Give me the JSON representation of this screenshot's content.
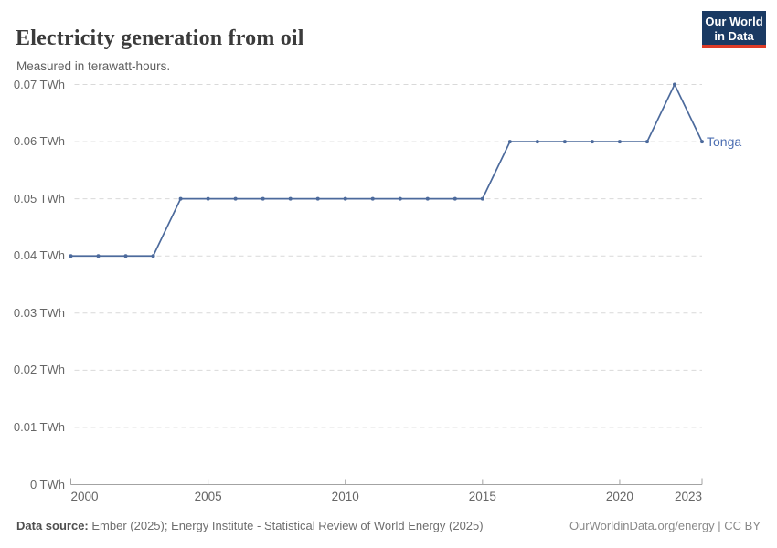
{
  "header": {
    "title": "Electricity generation from oil",
    "subtitle": "Measured in terawatt-hours.",
    "logo": {
      "line1": "Our World",
      "line2": "in Data",
      "bg_color": "#1a3a63",
      "bar_color": "#dd3b27",
      "text_color": "#ffffff"
    }
  },
  "chart_data": {
    "type": "line",
    "title": "Electricity generation from oil",
    "subtitle": "Measured in terawatt-hours.",
    "unit": "TWh",
    "x": [
      2000,
      2001,
      2002,
      2003,
      2004,
      2005,
      2006,
      2007,
      2008,
      2009,
      2010,
      2011,
      2012,
      2013,
      2014,
      2015,
      2016,
      2017,
      2018,
      2019,
      2020,
      2021,
      2022,
      2023
    ],
    "series": [
      {
        "name": "Tonga",
        "color": "#4c6a9c",
        "values": [
          0.04,
          0.04,
          0.04,
          0.04,
          0.05,
          0.05,
          0.05,
          0.05,
          0.05,
          0.05,
          0.05,
          0.05,
          0.05,
          0.05,
          0.05,
          0.05,
          0.06,
          0.06,
          0.06,
          0.06,
          0.06,
          0.06,
          0.07,
          0.06
        ]
      }
    ],
    "xlim": [
      2000,
      2023
    ],
    "ylim": [
      0,
      0.07
    ],
    "grid": "horizontal-dashed",
    "legend_position": "end-of-line-label",
    "end_label": "Tonga",
    "y_ticks": [
      {
        "value": 0,
        "label": "0 TWh"
      },
      {
        "value": 0.01,
        "label": "0.01 TWh"
      },
      {
        "value": 0.02,
        "label": "0.02 TWh"
      },
      {
        "value": 0.03,
        "label": "0.03 TWh"
      },
      {
        "value": 0.04,
        "label": "0.04 TWh"
      },
      {
        "value": 0.05,
        "label": "0.05 TWh"
      },
      {
        "value": 0.06,
        "label": "0.06 TWh"
      },
      {
        "value": 0.07,
        "label": "0.07 TWh"
      }
    ],
    "x_ticks": [
      {
        "value": 2000,
        "label": "2000"
      },
      {
        "value": 2005,
        "label": "2005"
      },
      {
        "value": 2010,
        "label": "2010"
      },
      {
        "value": 2015,
        "label": "2015"
      },
      {
        "value": 2020,
        "label": "2020"
      },
      {
        "value": 2023,
        "label": "2023"
      }
    ]
  },
  "footer": {
    "source_label": "Data source:",
    "source_text": "Ember (2025); Energy Institute - Statistical Review of World Energy (2025)",
    "link_text": "OurWorldinData.org/energy | CC BY"
  },
  "colors": {
    "line": "#4c6a9c",
    "entity_label": "#4d6fb2",
    "grid": "#d9d9d9",
    "axis": "#a3a3a3",
    "tick_text": "#666666",
    "title_text": "#3b3b3b",
    "subtitle_text": "#606060"
  }
}
